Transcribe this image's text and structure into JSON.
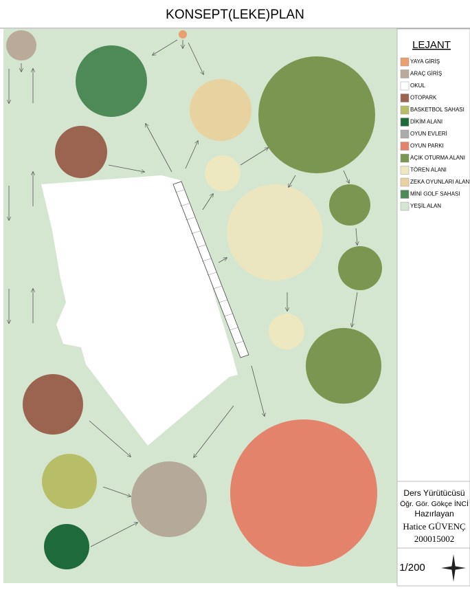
{
  "header": {
    "title": "KONSEPT(LEKE)PLAN"
  },
  "legend": {
    "title": "LEJANT",
    "items": [
      {
        "label": "YAYA GİRİŞ",
        "color": "#e8a070"
      },
      {
        "label": "ARAÇ GİRİŞ",
        "color": "#b9aa9a"
      },
      {
        "label": "OKUL",
        "color": "#ffffff"
      },
      {
        "label": "OTOPARK",
        "color": "#9a6450"
      },
      {
        "label": "BASKETBOL SAHASI",
        "color": "#b8bd68"
      },
      {
        "label": "DİKİM ALANI",
        "color": "#1f6a3a"
      },
      {
        "label": "OYUN EVLERİ",
        "color": "#ababab"
      },
      {
        "label": "OYUN PARKI",
        "color": "#e3836c"
      },
      {
        "label": "AÇIK OTURMA ALANI",
        "color": "#7a9650"
      },
      {
        "label": "TÖREN ALANI",
        "color": "#eee8c0"
      },
      {
        "label": "ZEKA OYUNLARI ALANI",
        "color": "#e8d3a0"
      },
      {
        "label": "MİNİ GOLF SAHASI",
        "color": "#4e8a58"
      },
      {
        "label": "YEŞİL ALAN",
        "color": "#d4e6cf"
      }
    ]
  },
  "credits": {
    "instructor_role": "Ders Yürütücüsü",
    "instructor": "Öğr. Gör. Gökçe İNCİ",
    "author_role": "Hazırlayan",
    "author": "Hatice GÜVENÇ",
    "student_no": "200015002"
  },
  "scale": "1/200"
}
